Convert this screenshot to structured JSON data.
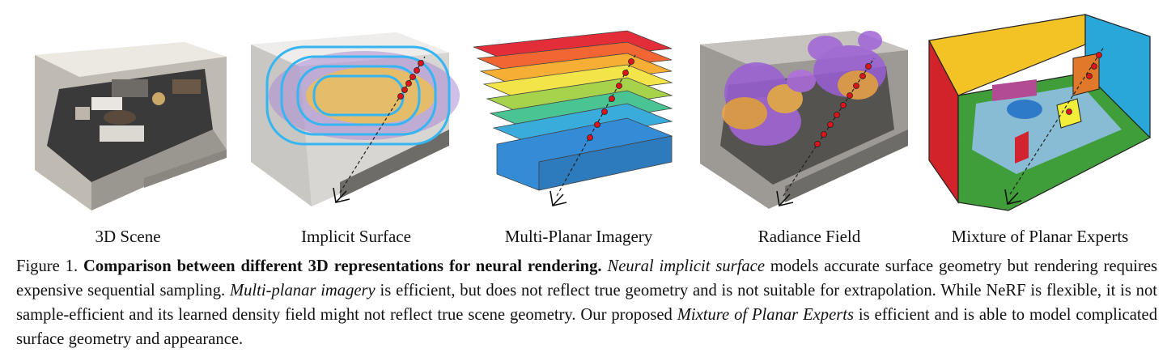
{
  "figure": {
    "panels": [
      {
        "label": "3D Scene"
      },
      {
        "label": "Implicit Surface"
      },
      {
        "label": "Multi-Planar Imagery"
      },
      {
        "label": "Radiance Field"
      },
      {
        "label": "Mixture of Planar Experts"
      }
    ],
    "caption": {
      "prefix": "Figure 1.",
      "title": "Comparison between different 3D representations for neural rendering.",
      "em1": "Neural implicit surface",
      "t1": "models accurate surface geometry but rendering requires expensive sequential sampling.",
      "em2": "Multi-planar imagery",
      "t2": "is efficient, but does not reflect true geometry and is not suitable for extrapolation. While NeRF is flexible, it is not sample-efficient and its learned density field might not reflect true scene geometry. Our proposed",
      "em3": "Mixture of Planar Experts",
      "t3": "is efficient and is able to model complicated surface geometry and appearance."
    }
  },
  "colors": {
    "ray_point": "#e0131b",
    "contour": "#35b5f2",
    "plane_colors": [
      "#e11d2a",
      "#f05a22",
      "#f7a823",
      "#f3e33a",
      "#9fd03c",
      "#3cc08a",
      "#2aa6d8",
      "#2383d4"
    ]
  }
}
